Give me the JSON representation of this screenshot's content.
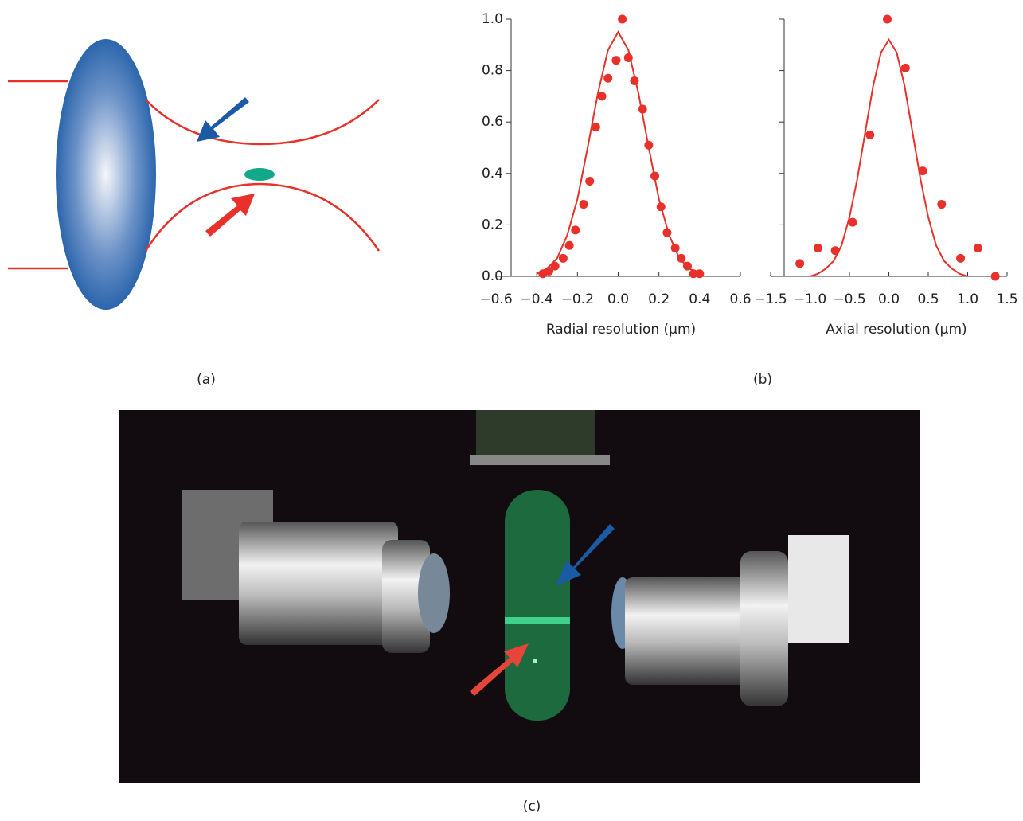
{
  "panel_labels": [
    "(a)",
    "(b)",
    "(c)"
  ],
  "chart_data": [
    {
      "type": "scatter",
      "xlabel": "Radial resolution (µm)",
      "xlim": [
        -0.6,
        0.6
      ],
      "xticks": [
        {
          "value": -0.6,
          "label": "−0.6"
        },
        {
          "value": -0.4,
          "label": "−0.4"
        },
        {
          "value": -0.2,
          "label": "−0.2"
        },
        {
          "value": 0,
          "label": "0.0"
        },
        0.2,
        0.4,
        0.6
      ],
      "ylim": [
        0,
        1
      ],
      "yticks": [
        {
          "value": 0,
          "label": "0.0"
        },
        0.2,
        0.4,
        0.6,
        0.8,
        {
          "value": 1,
          "label": "1.0"
        }
      ],
      "series": [
        {
          "type": "scatter",
          "color": "#e8312b",
          "x": [
            -0.37,
            -0.34,
            -0.31,
            -0.27,
            -0.24,
            -0.21,
            -0.17,
            -0.14,
            -0.11,
            -0.08,
            -0.05,
            -0.01,
            0.02,
            0.05,
            0.08,
            0.12,
            0.15,
            0.18,
            0.21,
            0.24,
            0.28,
            0.31,
            0.34,
            0.37,
            0.4
          ],
          "values": [
            0.01,
            0.02,
            0.04,
            0.07,
            0.12,
            0.18,
            0.28,
            0.37,
            0.58,
            0.7,
            0.77,
            0.84,
            1.0,
            0.85,
            0.76,
            0.65,
            0.51,
            0.39,
            0.27,
            0.17,
            0.11,
            0.07,
            0.04,
            0.01,
            0.01
          ]
        },
        {
          "type": "line",
          "color": "#e8312b",
          "x": [
            -0.4,
            -0.35,
            -0.3,
            -0.25,
            -0.2,
            -0.15,
            -0.1,
            -0.05,
            0,
            0.05,
            0.1,
            0.15,
            0.2,
            0.25,
            0.3,
            0.35,
            0.4
          ],
          "values": [
            0.01,
            0.03,
            0.07,
            0.16,
            0.3,
            0.5,
            0.71,
            0.88,
            0.95,
            0.88,
            0.71,
            0.5,
            0.3,
            0.16,
            0.07,
            0.03,
            0.01
          ]
        }
      ]
    },
    {
      "type": "scatter",
      "xlabel": "Axial resolution (µm)",
      "xlim": [
        -1.5,
        1.5
      ],
      "xticks": [
        {
          "value": -1.5,
          "label": "−1.5"
        },
        {
          "value": -1,
          "label": "−1.0"
        },
        {
          "value": -0.5,
          "label": "−0.5"
        },
        {
          "value": 0,
          "label": "0.0"
        },
        0.5,
        {
          "value": 1,
          "label": "1.0"
        },
        1.5
      ],
      "ylim": [
        0,
        1
      ],
      "yticks": [
        0,
        0.2,
        0.4,
        0.6,
        0.8,
        1
      ],
      "series": [
        {
          "type": "scatter",
          "color": "#e8312b",
          "x": [
            -1.13,
            -0.9,
            -0.68,
            -0.46,
            -0.24,
            -0.02,
            0.21,
            0.43,
            0.67,
            0.91,
            1.13,
            1.35
          ],
          "values": [
            0.05,
            0.11,
            0.1,
            0.21,
            0.55,
            1.0,
            0.81,
            0.41,
            0.28,
            0.07,
            0.11,
            0.0
          ]
        },
        {
          "type": "line",
          "color": "#e8312b",
          "x": [
            -1.0,
            -0.9,
            -0.8,
            -0.7,
            -0.6,
            -0.5,
            -0.4,
            -0.3,
            -0.2,
            -0.1,
            0,
            0.1,
            0.2,
            0.3,
            0.4,
            0.5,
            0.6,
            0.7,
            0.8,
            0.9,
            1.0
          ],
          "values": [
            0.0,
            0.01,
            0.03,
            0.06,
            0.12,
            0.23,
            0.38,
            0.56,
            0.74,
            0.87,
            0.92,
            0.87,
            0.74,
            0.56,
            0.38,
            0.23,
            0.12,
            0.06,
            0.03,
            0.01,
            0.0
          ]
        }
      ]
    }
  ]
}
